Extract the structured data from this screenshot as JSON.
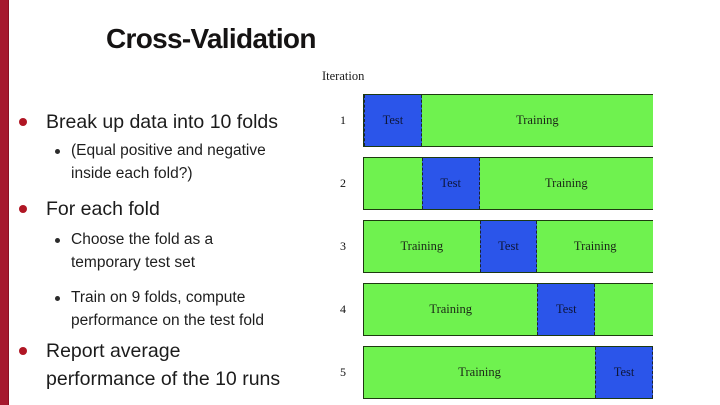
{
  "slide": {
    "title": "Cross-Validation",
    "bullets": [
      {
        "level": 1,
        "lines": [
          "Break up data into 10 folds"
        ]
      },
      {
        "level": 2,
        "lines": [
          "(Equal positive and negative",
          "inside each fold?)"
        ]
      },
      {
        "level": 1,
        "lines": [
          "For each fold"
        ]
      },
      {
        "level": 2,
        "lines": [
          "Choose the fold as a",
          "temporary test set"
        ]
      },
      {
        "level": 2,
        "lines": [
          "Train on 9 folds, compute",
          "performance on the test fold"
        ]
      },
      {
        "level": 1,
        "lines": [
          "Report average",
          "performance of the 10 runs"
        ]
      }
    ]
  },
  "diagram": {
    "axis_label": "Iteration",
    "total_folds": 5,
    "rows": [
      {
        "iteration": "1",
        "segments": [
          {
            "type": "test",
            "label": "Test",
            "folds": 1
          },
          {
            "type": "training",
            "label": "Training",
            "folds": 4
          }
        ]
      },
      {
        "iteration": "2",
        "segments": [
          {
            "type": "training",
            "label": "",
            "folds": 1
          },
          {
            "type": "test",
            "label": "Test",
            "folds": 1
          },
          {
            "type": "training",
            "label": "Training",
            "folds": 3
          }
        ]
      },
      {
        "iteration": "3",
        "segments": [
          {
            "type": "training",
            "label": "Training",
            "folds": 2
          },
          {
            "type": "test",
            "label": "Test",
            "folds": 1
          },
          {
            "type": "training",
            "label": "Training",
            "folds": 2
          }
        ]
      },
      {
        "iteration": "4",
        "segments": [
          {
            "type": "training",
            "label": "Training",
            "folds": 3
          },
          {
            "type": "test",
            "label": "Test",
            "folds": 1
          },
          {
            "type": "training",
            "label": "",
            "folds": 1
          }
        ]
      },
      {
        "iteration": "5",
        "segments": [
          {
            "type": "training",
            "label": "Training",
            "folds": 4
          },
          {
            "type": "test",
            "label": "Test",
            "folds": 1
          }
        ]
      }
    ],
    "colors": {
      "test": "#2b55ea",
      "training": "#6ff24f",
      "accent_bar": "#a6192e",
      "bullet": "#b01624"
    }
  }
}
